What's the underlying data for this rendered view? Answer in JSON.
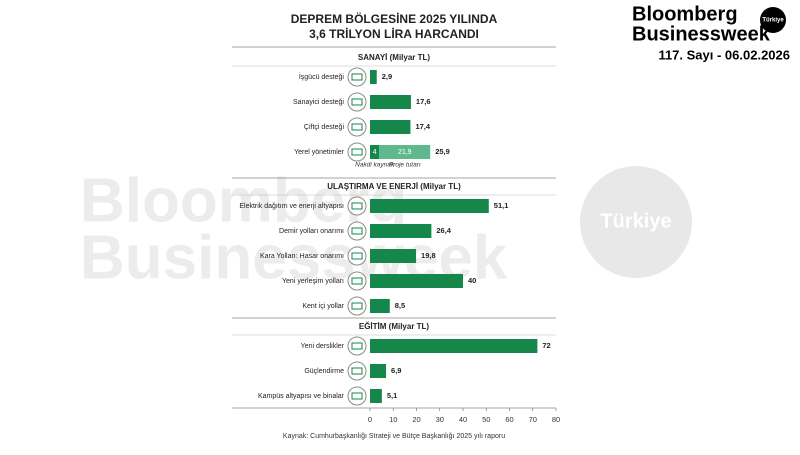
{
  "brand": {
    "name_line1": "Bloomberg",
    "name_line2": "Businessweek",
    "badge": "Türkiye",
    "issue": "117. Sayı - 06.02.2026"
  },
  "watermark": {
    "line1": "Bloomberg",
    "line2": "Businessweek",
    "badge": "Türkiye"
  },
  "chart_data": {
    "type": "bar",
    "title": [
      "DEPREM BÖLGESİNE 2025 YILINDA",
      "3,6 TRİLYON LİRA HARCANDI"
    ],
    "color": "#16874a",
    "stack_colors": [
      "#16874a",
      "#5fb98c"
    ],
    "xlim": [
      0,
      80
    ],
    "xticks": [
      0,
      10,
      20,
      30,
      40,
      50,
      60,
      70,
      80
    ],
    "sections": [
      {
        "name": "SANAYİ (Milyar TL)",
        "categories": [
          "İşgücü desteği",
          "Sanayici desteği",
          "Çiftçi desteği"
        ],
        "values": [
          2.9,
          17.6,
          17.4
        ],
        "value_labels": [
          "2,9",
          "17,6",
          "17,4"
        ],
        "stack": {
          "category": "Yerel yönetimler",
          "series": [
            {
              "name": "Nakdi kaynak",
              "values": [
                4
              ],
              "value_labels": [
                "4"
              ]
            },
            {
              "name": "Proje tutarı",
              "values": [
                21.9
              ],
              "value_labels": [
                "21,9"
              ]
            }
          ],
          "total": 25.9,
          "total_label": "25,9"
        }
      },
      {
        "name": "ULAŞTIRMA VE ENERJİ (Milyar TL)",
        "categories": [
          "Elektrik dağıtım ve enerji altyapısı",
          "Demir yolları onarımı",
          "Kara Yolları: Hasar onarımı",
          "Yeni yerleşim yolları",
          "Kent içi yollar"
        ],
        "values": [
          51.1,
          26.4,
          19.8,
          40,
          8.5
        ],
        "value_labels": [
          "51,1",
          "26,4",
          "19,8",
          "40",
          "8,5"
        ]
      },
      {
        "name": "EĞİTİM (Milyar TL)",
        "categories": [
          "Yeni derslikler",
          "Güçlendirme",
          "Kampüs altyapısı ve binalar"
        ],
        "values": [
          72,
          6.9,
          5.1
        ],
        "value_labels": [
          "72",
          "6,9",
          "5,1"
        ]
      }
    ],
    "source": "Kaynak: Cumhurbaşkanlığı Strateji ve Bütçe Başkanlığı 2025 yılı raporu"
  }
}
